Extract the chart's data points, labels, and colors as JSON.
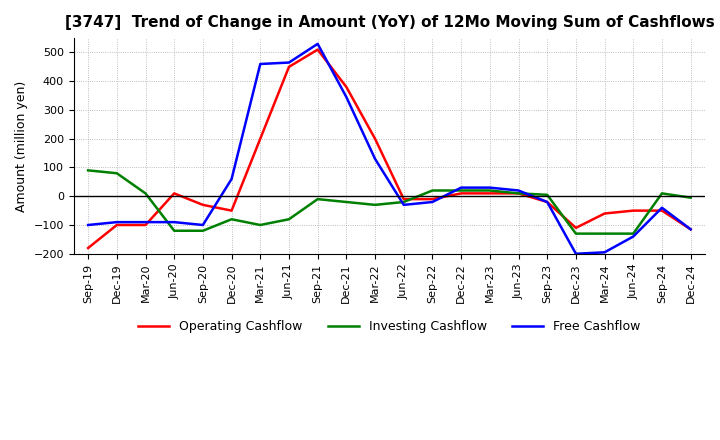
{
  "title": "[3747]  Trend of Change in Amount (YoY) of 12Mo Moving Sum of Cashflows",
  "ylabel": "Amount (million yen)",
  "x_labels": [
    "Sep-19",
    "Dec-19",
    "Mar-20",
    "Jun-20",
    "Sep-20",
    "Dec-20",
    "Mar-21",
    "Jun-21",
    "Sep-21",
    "Dec-21",
    "Mar-22",
    "Jun-22",
    "Sep-22",
    "Dec-22",
    "Mar-23",
    "Jun-23",
    "Sep-23",
    "Dec-23",
    "Mar-24",
    "Jun-24",
    "Sep-24",
    "Dec-24"
  ],
  "operating": [
    -180,
    -100,
    -100,
    10,
    -30,
    -50,
    200,
    450,
    510,
    380,
    200,
    -10,
    -10,
    10,
    10,
    10,
    -20,
    -110,
    -60,
    -50,
    -50,
    -115
  ],
  "investing": [
    90,
    80,
    10,
    -120,
    -120,
    -80,
    -100,
    -80,
    -10,
    -20,
    -30,
    -20,
    20,
    20,
    20,
    10,
    5,
    -130,
    -130,
    -130,
    10,
    -5
  ],
  "free": [
    -100,
    -90,
    -90,
    -90,
    -100,
    60,
    460,
    465,
    530,
    345,
    130,
    -30,
    -20,
    30,
    30,
    20,
    -20,
    -200,
    -195,
    -140,
    -40,
    -115
  ],
  "ylim": [
    -200,
    550
  ],
  "yticks": [
    -200,
    -100,
    0,
    100,
    200,
    300,
    400,
    500
  ],
  "operating_color": "#ff0000",
  "investing_color": "#008000",
  "free_color": "#0000ff",
  "background_color": "#ffffff",
  "grid_color": "#aaaaaa",
  "title_fontsize": 11,
  "tick_fontsize": 8,
  "ylabel_fontsize": 9,
  "legend_labels": [
    "Operating Cashflow",
    "Investing Cashflow",
    "Free Cashflow"
  ],
  "legend_fontsize": 9
}
